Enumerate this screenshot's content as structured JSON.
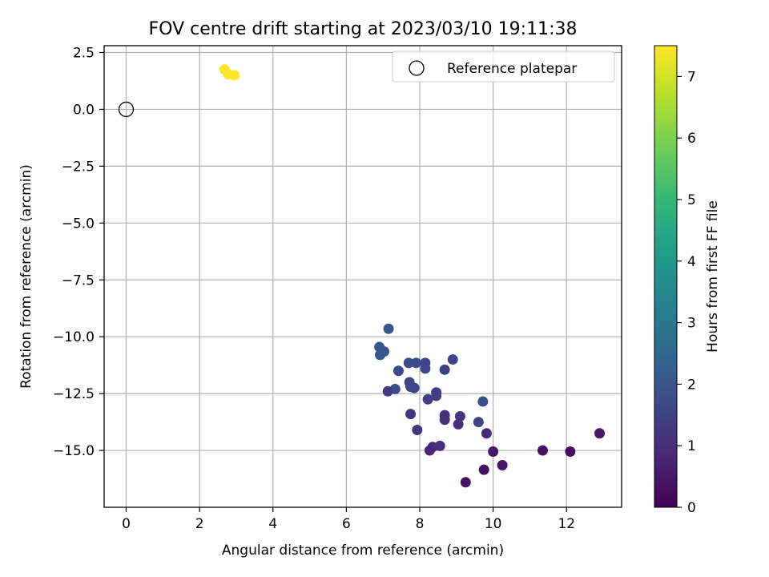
{
  "chart_data": {
    "type": "scatter",
    "title": "FOV centre drift starting at 2023/03/10 19:11:38",
    "xlabel": "Angular distance from reference (arcmin)",
    "ylabel": "Rotation from reference (arcmin)",
    "xlim": [
      -0.6,
      13.5
    ],
    "ylim": [
      -17.5,
      2.8
    ],
    "xticks": [
      0,
      2,
      4,
      6,
      8,
      10,
      12
    ],
    "xtick_labels": [
      "0",
      "2",
      "4",
      "6",
      "8",
      "10",
      "12"
    ],
    "yticks": [
      2.5,
      0.0,
      -2.5,
      -5.0,
      -7.5,
      -10.0,
      -12.5,
      -15.0
    ],
    "ytick_labels": [
      "2.5",
      "0.0",
      "−2.5",
      "−5.0",
      "−7.5",
      "−10.0",
      "−12.5",
      "−15.0"
    ],
    "grid": true,
    "legend": {
      "position": "top-right",
      "entries": [
        "Reference platepar"
      ]
    },
    "reference_point": {
      "name": "Reference platepar",
      "x": 0.0,
      "y": 0.0,
      "marker": "open-circle"
    },
    "colorbar": {
      "label": "Hours from first FF file",
      "min": 0,
      "max": 7.5,
      "ticks": [
        0,
        1,
        2,
        3,
        4,
        5,
        6,
        7
      ],
      "tick_labels": [
        "0",
        "1",
        "2",
        "3",
        "4",
        "5",
        "6",
        "7"
      ],
      "colormap": [
        "#440154",
        "#482878",
        "#3e4989",
        "#31688e",
        "#26828e",
        "#1f9e89",
        "#35b779",
        "#6ece58",
        "#b5de2b",
        "#fde725"
      ]
    },
    "points": [
      {
        "x": 2.68,
        "y": 1.75,
        "hours": 7.5
      },
      {
        "x": 2.78,
        "y": 1.55,
        "hours": 7.5
      },
      {
        "x": 2.95,
        "y": 1.5,
        "hours": 7.5
      },
      {
        "x": 7.15,
        "y": -9.65,
        "hours": 2.0
      },
      {
        "x": 6.9,
        "y": -10.45,
        "hours": 2.0
      },
      {
        "x": 6.92,
        "y": -10.8,
        "hours": 2.0
      },
      {
        "x": 7.03,
        "y": -10.65,
        "hours": 2.0
      },
      {
        "x": 7.7,
        "y": -11.15,
        "hours": 1.7
      },
      {
        "x": 7.9,
        "y": -11.15,
        "hours": 1.7
      },
      {
        "x": 8.15,
        "y": -11.15,
        "hours": 1.6
      },
      {
        "x": 8.15,
        "y": -11.4,
        "hours": 1.6
      },
      {
        "x": 8.9,
        "y": -11.0,
        "hours": 1.6
      },
      {
        "x": 8.68,
        "y": -11.45,
        "hours": 1.5
      },
      {
        "x": 7.42,
        "y": -11.5,
        "hours": 1.7
      },
      {
        "x": 7.72,
        "y": -12.0,
        "hours": 1.6
      },
      {
        "x": 7.75,
        "y": -12.2,
        "hours": 1.6
      },
      {
        "x": 7.85,
        "y": -12.25,
        "hours": 1.6
      },
      {
        "x": 7.33,
        "y": -12.3,
        "hours": 1.7
      },
      {
        "x": 7.13,
        "y": -12.4,
        "hours": 1.3
      },
      {
        "x": 8.45,
        "y": -12.45,
        "hours": 1.4
      },
      {
        "x": 8.45,
        "y": -12.6,
        "hours": 1.4
      },
      {
        "x": 8.22,
        "y": -12.75,
        "hours": 1.4
      },
      {
        "x": 9.72,
        "y": -12.85,
        "hours": 1.8
      },
      {
        "x": 7.75,
        "y": -13.4,
        "hours": 1.2
      },
      {
        "x": 8.68,
        "y": -13.45,
        "hours": 1.0
      },
      {
        "x": 9.1,
        "y": -13.5,
        "hours": 1.2
      },
      {
        "x": 8.68,
        "y": -13.65,
        "hours": 1.0
      },
      {
        "x": 9.6,
        "y": -13.75,
        "hours": 1.6
      },
      {
        "x": 9.05,
        "y": -13.85,
        "hours": 1.0
      },
      {
        "x": 7.93,
        "y": -14.1,
        "hours": 1.2
      },
      {
        "x": 9.82,
        "y": -14.25,
        "hours": 0.9
      },
      {
        "x": 12.9,
        "y": -14.25,
        "hours": 0.5
      },
      {
        "x": 8.35,
        "y": -14.85,
        "hours": 0.9
      },
      {
        "x": 8.55,
        "y": -14.8,
        "hours": 1.0
      },
      {
        "x": 8.27,
        "y": -15.0,
        "hours": 0.8
      },
      {
        "x": 10.0,
        "y": -15.05,
        "hours": 0.5
      },
      {
        "x": 11.35,
        "y": -15.0,
        "hours": 0.4
      },
      {
        "x": 12.1,
        "y": -15.05,
        "hours": 0.3
      },
      {
        "x": 10.25,
        "y": -15.65,
        "hours": 0.5
      },
      {
        "x": 9.75,
        "y": -15.85,
        "hours": 0.3
      },
      {
        "x": 9.25,
        "y": -16.4,
        "hours": 0.4
      }
    ]
  }
}
